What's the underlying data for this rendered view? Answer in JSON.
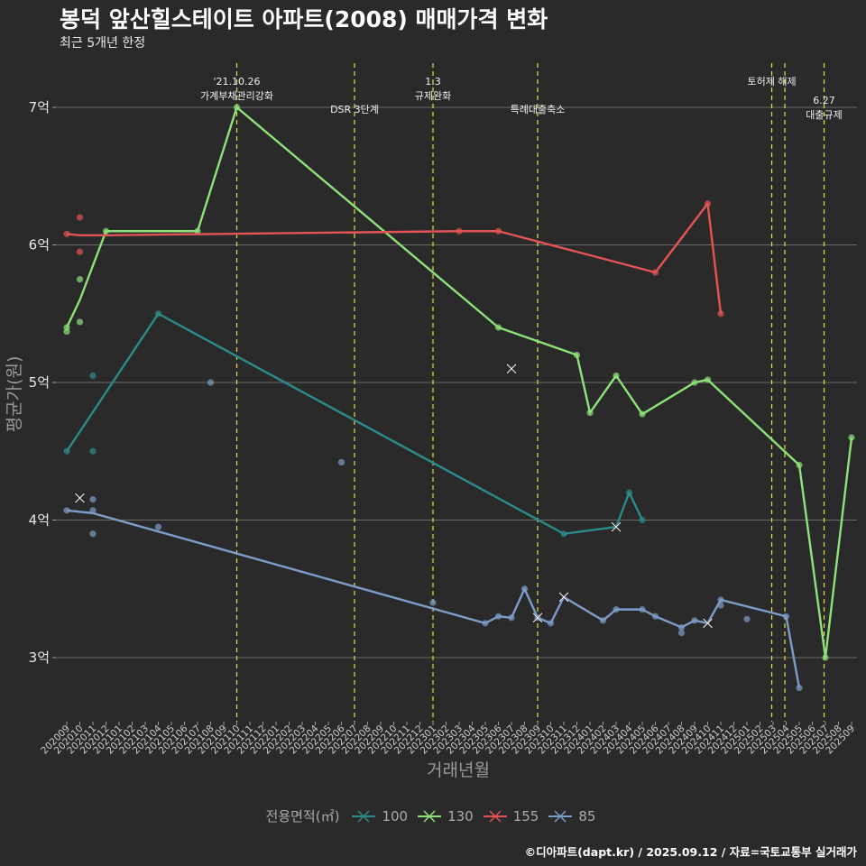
{
  "header": {
    "title": "봉덕 앞산힐스테이트 아파트(2008) 매매가격 변화",
    "subtitle": "최근 5개년 한정"
  },
  "caption": "©디아파트(dapt.kr) / 2025.09.12 / 자료=국토교통부 실거래가",
  "legend": {
    "title": "전용면적(㎡)",
    "items": [
      {
        "label": "100",
        "color": "#2c8c8a"
      },
      {
        "label": "130",
        "color": "#8ee27a"
      },
      {
        "label": "155",
        "color": "#e45454"
      },
      {
        "label": "85",
        "color": "#7d9dc9"
      }
    ]
  },
  "chart_data": {
    "type": "line",
    "title": "봉덕 앞산힐스테이트 아파트(2008) 매매가격 변화",
    "subtitle": "최근 5개년 한정",
    "xlabel": "거래년월",
    "ylabel": "평균가(원)",
    "ylim": [
      2.6,
      7.3
    ],
    "y_ticks": [
      {
        "value": 3,
        "label": "3억"
      },
      {
        "value": 4,
        "label": "4억"
      },
      {
        "value": 5,
        "label": "5억"
      },
      {
        "value": 6,
        "label": "6억"
      },
      {
        "value": 7,
        "label": "7억"
      }
    ],
    "x_months": [
      "202009",
      "202010",
      "202011",
      "202012",
      "202101",
      "202102",
      "202103",
      "202104",
      "202105",
      "202106",
      "202107",
      "202108",
      "202109",
      "202110",
      "202111",
      "202112",
      "202201",
      "202202",
      "202203",
      "202204",
      "202205",
      "202206",
      "202207",
      "202208",
      "202209",
      "202210",
      "202211",
      "202212",
      "202301",
      "202302",
      "202303",
      "202304",
      "202305",
      "202306",
      "202307",
      "202308",
      "202309",
      "202310",
      "202311",
      "202312",
      "202401",
      "202402",
      "202403",
      "202404",
      "202405",
      "202406",
      "202407",
      "202408",
      "202409",
      "202410",
      "202411",
      "202412",
      "202501",
      "202502",
      "202503",
      "202504",
      "202505",
      "202506",
      "202507",
      "202508",
      "202509"
    ],
    "grid": true,
    "legend_position": "bottom",
    "events": [
      {
        "x": 13.0,
        "lines": [
          "'21.10.26",
          "가계부채관리강화"
        ],
        "row": "top"
      },
      {
        "x": 22.0,
        "lines": [
          "DSR 3단계"
        ],
        "row": "bottom"
      },
      {
        "x": 28.0,
        "lines": [
          "1.3",
          "규제완화"
        ],
        "row": "top"
      },
      {
        "x": 36.0,
        "lines": [
          "특례대출축소"
        ],
        "row": "bottom"
      },
      {
        "x": 53.9,
        "lines": [
          "토허제 해제"
        ],
        "row": "top"
      },
      {
        "x": 54.9,
        "lines": [],
        "row": "top"
      },
      {
        "x": 57.9,
        "lines": [
          "6.27",
          "대출규제"
        ],
        "row": "low"
      }
    ],
    "series": [
      {
        "name": "100",
        "color": "#2c8c8a",
        "line": [
          [
            0,
            4.5
          ],
          [
            7,
            5.5
          ],
          [
            38,
            3.9
          ],
          [
            42,
            3.95
          ],
          [
            43,
            4.2
          ],
          [
            44,
            4.0
          ]
        ],
        "points": [
          [
            0,
            4.5
          ],
          [
            2,
            5.05
          ],
          [
            2,
            4.5
          ],
          [
            7,
            5.5
          ],
          [
            38,
            3.9
          ],
          [
            43,
            4.2
          ],
          [
            44,
            4.0
          ]
        ],
        "crosses": [
          [
            42,
            3.95
          ]
        ]
      },
      {
        "name": "130",
        "color": "#8ee27a",
        "line": [
          [
            0,
            5.4
          ],
          [
            1,
            5.6
          ],
          [
            3,
            6.1
          ],
          [
            10,
            6.1
          ],
          [
            13,
            7.0
          ],
          [
            33,
            5.4
          ],
          [
            39,
            5.2
          ],
          [
            40,
            4.78
          ],
          [
            42,
            5.05
          ],
          [
            44,
            4.77
          ],
          [
            48,
            5.0
          ],
          [
            49,
            5.02
          ],
          [
            56,
            4.4
          ],
          [
            58,
            3.0
          ],
          [
            60,
            4.6
          ]
        ],
        "points": [
          [
            0,
            5.4
          ],
          [
            0,
            5.37
          ],
          [
            1,
            5.75
          ],
          [
            1,
            5.44
          ],
          [
            3,
            6.1
          ],
          [
            10,
            6.1
          ],
          [
            13,
            7.0
          ],
          [
            33,
            5.4
          ],
          [
            39,
            5.2
          ],
          [
            40,
            4.78
          ],
          [
            42,
            5.05
          ],
          [
            44,
            4.77
          ],
          [
            48,
            5.0
          ],
          [
            49,
            5.02
          ],
          [
            56,
            4.4
          ],
          [
            58,
            3.0
          ],
          [
            60,
            4.6
          ]
        ],
        "crosses": [
          [
            34,
            5.1
          ]
        ]
      },
      {
        "name": "155",
        "color": "#e45454",
        "line": [
          [
            0,
            6.08
          ],
          [
            1,
            6.07
          ],
          [
            3,
            6.07
          ],
          [
            30,
            6.1
          ],
          [
            33,
            6.1
          ],
          [
            45,
            5.8
          ],
          [
            49,
            6.3
          ],
          [
            50,
            5.5
          ]
        ],
        "points": [
          [
            0,
            6.08
          ],
          [
            1,
            6.2
          ],
          [
            1,
            5.95
          ],
          [
            30,
            6.1
          ],
          [
            33,
            6.1
          ],
          [
            45,
            5.8
          ],
          [
            49,
            6.3
          ],
          [
            50,
            5.5
          ]
        ],
        "crosses": []
      },
      {
        "name": "85",
        "color": "#7d9dc9",
        "line": [
          [
            0,
            4.07
          ],
          [
            2,
            4.05
          ],
          [
            32,
            3.25
          ],
          [
            33,
            3.3
          ],
          [
            34,
            3.29
          ],
          [
            35,
            3.5
          ],
          [
            36,
            3.29
          ],
          [
            37,
            3.25
          ],
          [
            38,
            3.44
          ],
          [
            41,
            3.27
          ],
          [
            42,
            3.35
          ],
          [
            44,
            3.35
          ],
          [
            45,
            3.3
          ],
          [
            47,
            3.22
          ],
          [
            48,
            3.27
          ],
          [
            49,
            3.25
          ],
          [
            50,
            3.42
          ],
          [
            55,
            3.3
          ],
          [
            56,
            2.78
          ]
        ],
        "points": [
          [
            0,
            4.07
          ],
          [
            2,
            4.15
          ],
          [
            2,
            4.07
          ],
          [
            2,
            3.9
          ],
          [
            7,
            3.95
          ],
          [
            11,
            5.0
          ],
          [
            21,
            4.42
          ],
          [
            28,
            3.4
          ],
          [
            32,
            3.25
          ],
          [
            33,
            3.3
          ],
          [
            34,
            3.29
          ],
          [
            35,
            3.5
          ],
          [
            36,
            3.29
          ],
          [
            37,
            3.25
          ],
          [
            41,
            3.27
          ],
          [
            42,
            3.35
          ],
          [
            44,
            3.35
          ],
          [
            45,
            3.3
          ],
          [
            47,
            3.22
          ],
          [
            47,
            3.18
          ],
          [
            48,
            3.27
          ],
          [
            50,
            3.42
          ],
          [
            50,
            3.38
          ],
          [
            52,
            3.28
          ],
          [
            55,
            3.3
          ],
          [
            56,
            2.78
          ]
        ],
        "crosses": [
          [
            1,
            4.16
          ],
          [
            36,
            3.29
          ],
          [
            38,
            3.44
          ],
          [
            49,
            3.25
          ]
        ]
      }
    ]
  }
}
